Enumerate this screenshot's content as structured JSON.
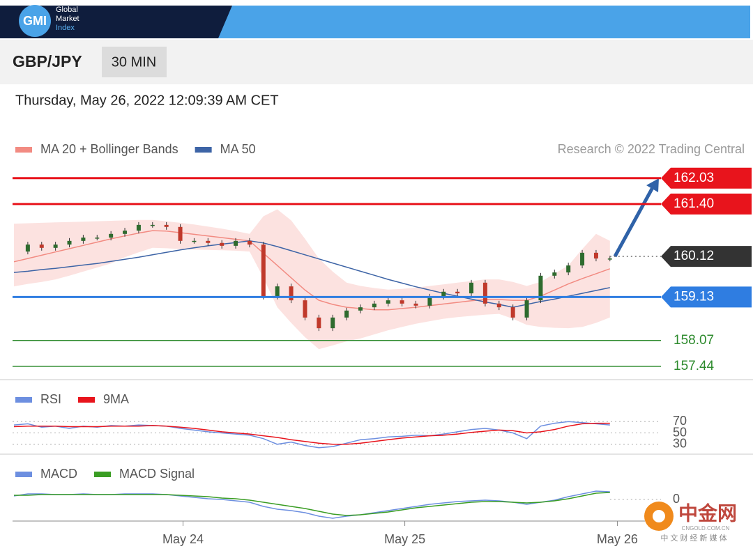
{
  "header": {
    "logo": "GMI",
    "brand": [
      "Global",
      "Market",
      "Index"
    ],
    "symbol": "GBP/JPY",
    "timeframe": "30 MIN",
    "datetime": "Thursday, May 26, 2022 12:09:39 AM CET"
  },
  "watermark": {
    "name": "中金网",
    "site": "CNGOLD.COM.CN",
    "slogan": "中 文 财 经 新 媒 体"
  },
  "chart_data": [
    {
      "type": "candlestick",
      "source": "Research © 2022 Trading Central",
      "up_color": "#2e6b2e",
      "down_color": "#c0392b",
      "x": [
        0,
        1.5,
        3,
        4.5,
        6,
        7.5,
        9,
        10.5,
        12,
        13.5,
        15,
        16.5,
        18,
        19.5,
        21,
        22.5,
        24,
        25.5,
        27,
        28.5,
        30,
        31.5,
        33,
        34.5,
        36,
        37.5,
        39,
        40.5,
        42,
        43.5,
        45,
        46.5,
        48,
        49.5,
        51,
        52.5,
        54,
        55.5,
        57,
        58.5,
        60,
        61.5,
        63,
        64.5
      ],
      "xlim": [
        0,
        66.4
      ],
      "close": [
        160.24,
        160.41,
        160.33,
        160.41,
        160.5,
        160.58,
        160.58,
        160.67,
        160.75,
        160.89,
        160.89,
        160.84,
        160.5,
        160.5,
        160.45,
        160.38,
        160.5,
        160.41,
        159.14,
        159.39,
        159.05,
        158.63,
        158.37,
        158.63,
        158.8,
        158.88,
        158.97,
        159.05,
        158.97,
        158.92,
        159.14,
        159.26,
        159.22,
        159.48,
        158.97,
        158.88,
        158.63,
        159.05,
        159.65,
        159.73,
        159.9,
        160.21,
        160.07,
        160.07
      ],
      "series": [
        {
          "name": "MA 20 + Bollinger Bands",
          "color": "#f28b82",
          "values": [
            159.99,
            160.07,
            160.15,
            160.23,
            160.31,
            160.39,
            160.47,
            160.55,
            160.62,
            160.69,
            160.75,
            160.74,
            160.7,
            160.66,
            160.62,
            160.58,
            160.54,
            160.5,
            160.2,
            159.9,
            159.6,
            159.3,
            159.05,
            158.95,
            158.88,
            158.85,
            158.82,
            158.82,
            158.85,
            158.88,
            158.92,
            158.96,
            159.0,
            159.04,
            159.07,
            159.07,
            159.05,
            159.05,
            159.15,
            159.3,
            159.45,
            159.58,
            159.7,
            159.82
          ],
          "upper": [
            160.92,
            160.93,
            160.94,
            160.95,
            160.96,
            160.97,
            160.98,
            160.99,
            161.0,
            161.01,
            161.01,
            160.98,
            160.94,
            160.9,
            160.85,
            160.8,
            160.74,
            160.67,
            161.1,
            161.27,
            161.0,
            160.55,
            160.07,
            159.75,
            159.48,
            159.4,
            159.35,
            159.31,
            159.33,
            159.36,
            159.4,
            159.44,
            159.48,
            159.52,
            159.56,
            159.56,
            159.5,
            159.4,
            159.5,
            159.7,
            159.9,
            160.3,
            160.67,
            160.5
          ],
          "lower": [
            159.39,
            159.45,
            159.5,
            159.56,
            159.65,
            159.75,
            159.85,
            159.95,
            160.1,
            160.22,
            160.33,
            160.32,
            160.3,
            160.29,
            160.28,
            160.27,
            160.26,
            160.24,
            159.6,
            158.88,
            158.5,
            158.15,
            157.86,
            157.95,
            158.05,
            158.12,
            158.22,
            158.32,
            158.4,
            158.48,
            158.54,
            158.6,
            158.64,
            158.67,
            158.7,
            158.72,
            158.6,
            158.45,
            158.4,
            158.38,
            158.37,
            158.4,
            158.5,
            158.63
          ]
        },
        {
          "name": "MA 50",
          "color": "#3d64a6",
          "values": [
            159.73,
            159.76,
            159.8,
            159.83,
            159.87,
            159.91,
            159.95,
            160.0,
            160.05,
            160.1,
            160.16,
            160.22,
            160.28,
            160.33,
            160.38,
            160.42,
            160.46,
            160.5,
            160.45,
            160.36,
            160.26,
            160.16,
            160.06,
            159.96,
            159.86,
            159.76,
            159.66,
            159.56,
            159.47,
            159.38,
            159.3,
            159.22,
            159.15,
            159.08,
            159.01,
            158.95,
            158.88,
            158.95,
            159.02,
            159.08,
            159.15,
            159.22,
            159.29,
            159.36
          ]
        }
      ],
      "ylim": [
        157.2,
        162.4
      ],
      "levels": [
        {
          "value": 162.03,
          "label": "162.03",
          "color": "#e8141c",
          "line": "solid",
          "box": true
        },
        {
          "value": 161.4,
          "label": "161.40",
          "color": "#e8141c",
          "line": "solid",
          "box": true
        },
        {
          "value": 160.12,
          "label": "160.12",
          "color": "#333333",
          "line": "dotted",
          "box": true
        },
        {
          "value": 159.13,
          "label": "159.13",
          "color": "#2f7de1",
          "line": "solid",
          "box": true
        },
        {
          "value": 158.07,
          "label": "158.07",
          "color": "#2e8b2e",
          "line": "solid",
          "box": false
        },
        {
          "value": 157.44,
          "label": "157.44",
          "color": "#2e8b2e",
          "line": "solid",
          "box": false
        }
      ]
    },
    {
      "type": "line",
      "series": [
        {
          "name": "RSI",
          "color": "#6d8fe0",
          "values": [
            64,
            66,
            60,
            62,
            58,
            62,
            60,
            63,
            62,
            64,
            63,
            62,
            58,
            55,
            52,
            50,
            48,
            46,
            40,
            30,
            34,
            28,
            24,
            26,
            32,
            38,
            40,
            43,
            44,
            46,
            45,
            48,
            52,
            56,
            58,
            55,
            50,
            40,
            62,
            67,
            70,
            68,
            66,
            64
          ]
        },
        {
          "name": "9MA",
          "color": "#e8141c",
          "values": [
            61,
            62,
            62,
            62,
            61,
            61,
            61,
            62,
            62,
            62,
            63,
            62,
            60,
            58,
            55,
            52,
            50,
            48,
            45,
            42,
            38,
            35,
            32,
            30,
            30,
            32,
            35,
            38,
            41,
            43,
            45,
            46,
            48,
            51,
            53,
            55,
            54,
            50,
            52,
            56,
            62,
            66,
            67,
            67
          ]
        }
      ],
      "ylim": [
        20,
        80
      ],
      "yticks": [
        70,
        50,
        30
      ]
    },
    {
      "type": "line",
      "series": [
        {
          "name": "MACD",
          "color": "#6d8fe0",
          "values": [
            0.05,
            0.08,
            0.08,
            0.07,
            0.07,
            0.08,
            0.07,
            0.07,
            0.08,
            0.08,
            0.08,
            0.07,
            0.05,
            0.03,
            0.01,
            0.0,
            -0.02,
            -0.04,
            -0.1,
            -0.14,
            -0.16,
            -0.19,
            -0.24,
            -0.27,
            -0.24,
            -0.22,
            -0.19,
            -0.16,
            -0.13,
            -0.1,
            -0.07,
            -0.05,
            -0.03,
            -0.02,
            -0.01,
            -0.02,
            -0.04,
            -0.07,
            -0.04,
            -0.01,
            0.04,
            0.08,
            0.12,
            0.11
          ]
        },
        {
          "name": "MACD Signal",
          "color": "#3a9d23",
          "values": [
            0.06,
            0.06,
            0.07,
            0.07,
            0.07,
            0.07,
            0.07,
            0.07,
            0.07,
            0.07,
            0.07,
            0.07,
            0.06,
            0.05,
            0.04,
            0.02,
            0.01,
            -0.01,
            -0.04,
            -0.07,
            -0.1,
            -0.13,
            -0.17,
            -0.21,
            -0.23,
            -0.22,
            -0.2,
            -0.18,
            -0.15,
            -0.12,
            -0.1,
            -0.08,
            -0.06,
            -0.04,
            -0.03,
            -0.03,
            -0.04,
            -0.05,
            -0.04,
            -0.02,
            0.01,
            0.05,
            0.09,
            0.1
          ]
        }
      ],
      "ylim": [
        -0.35,
        0.15
      ],
      "yticks": [
        0
      ],
      "xticks": [
        {
          "value": 18.3,
          "label": "May 24"
        },
        {
          "value": 42.3,
          "label": "May 25"
        },
        {
          "value": 65.3,
          "label": "May 26"
        }
      ]
    }
  ]
}
